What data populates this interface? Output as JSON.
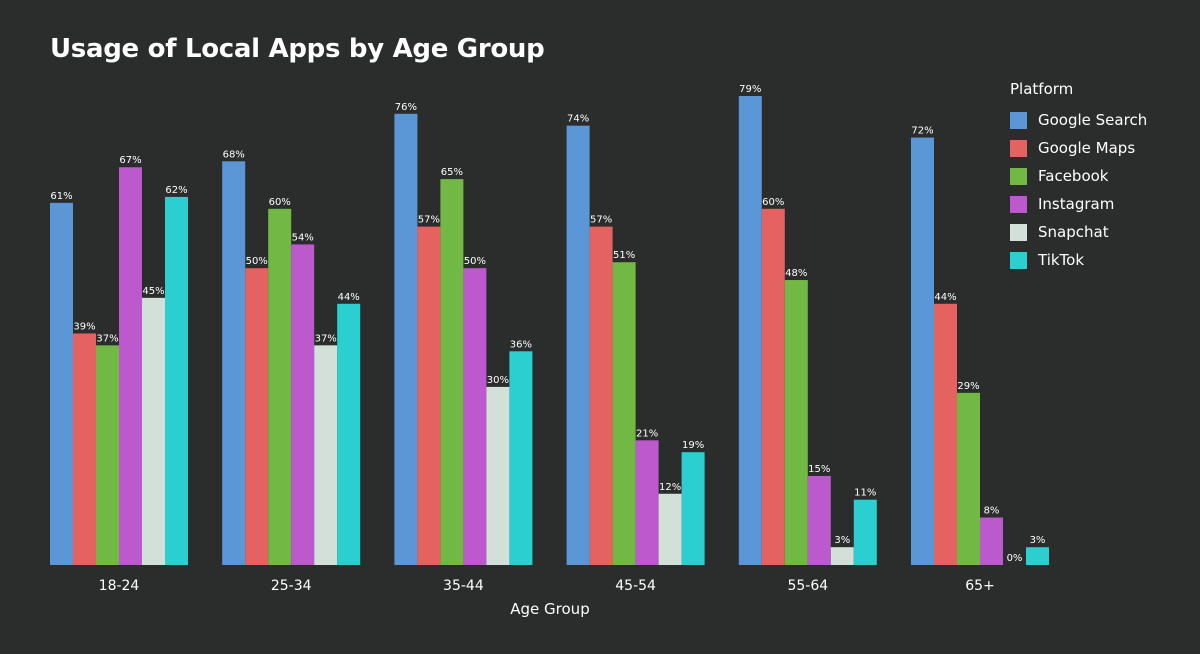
{
  "chart_data": {
    "type": "bar",
    "title": "Usage of Local Apps by Age Group",
    "xlabel": "Age Group",
    "ylabel": "",
    "ylim": [
      0,
      84
    ],
    "legend_title": "Platform",
    "legend_position": "top-right",
    "categories": [
      "18-24",
      "25-34",
      "35-44",
      "45-54",
      "55-64",
      "65+"
    ],
    "series": [
      {
        "name": "Google Search",
        "color": "#5b96d6",
        "values": [
          61,
          68,
          76,
          74,
          79,
          72
        ],
        "labels": [
          "61%",
          "68%",
          "76%",
          "74%",
          "79%",
          "72%"
        ]
      },
      {
        "name": "Google Maps",
        "color": "#e46260",
        "values": [
          39,
          50,
          57,
          57,
          60,
          44
        ],
        "labels": [
          "39%",
          "50%",
          "57%",
          "57%",
          "60%",
          "44%"
        ]
      },
      {
        "name": "Facebook",
        "color": "#72b844",
        "values": [
          37,
          60,
          65,
          51,
          48,
          29
        ],
        "labels": [
          "37%",
          "60%",
          "65%",
          "51%",
          "48%",
          "29%"
        ]
      },
      {
        "name": "Instagram",
        "color": "#bb59cd",
        "values": [
          67,
          54,
          50,
          21,
          15,
          8
        ],
        "labels": [
          "67%",
          "54%",
          "50%",
          "21%",
          "15%",
          "8%"
        ]
      },
      {
        "name": "Snapchat",
        "color": "#d3e0da",
        "values": [
          45,
          37,
          30,
          12,
          3,
          0
        ],
        "labels": [
          "45%",
          "37%",
          "30%",
          "12%",
          "3%",
          "0%"
        ]
      },
      {
        "name": "TikTok",
        "color": "#2bcfcf",
        "values": [
          62,
          44,
          36,
          19,
          11,
          3
        ],
        "labels": [
          "62%",
          "44%",
          "36%",
          "19%",
          "11%",
          "3%"
        ]
      }
    ]
  }
}
